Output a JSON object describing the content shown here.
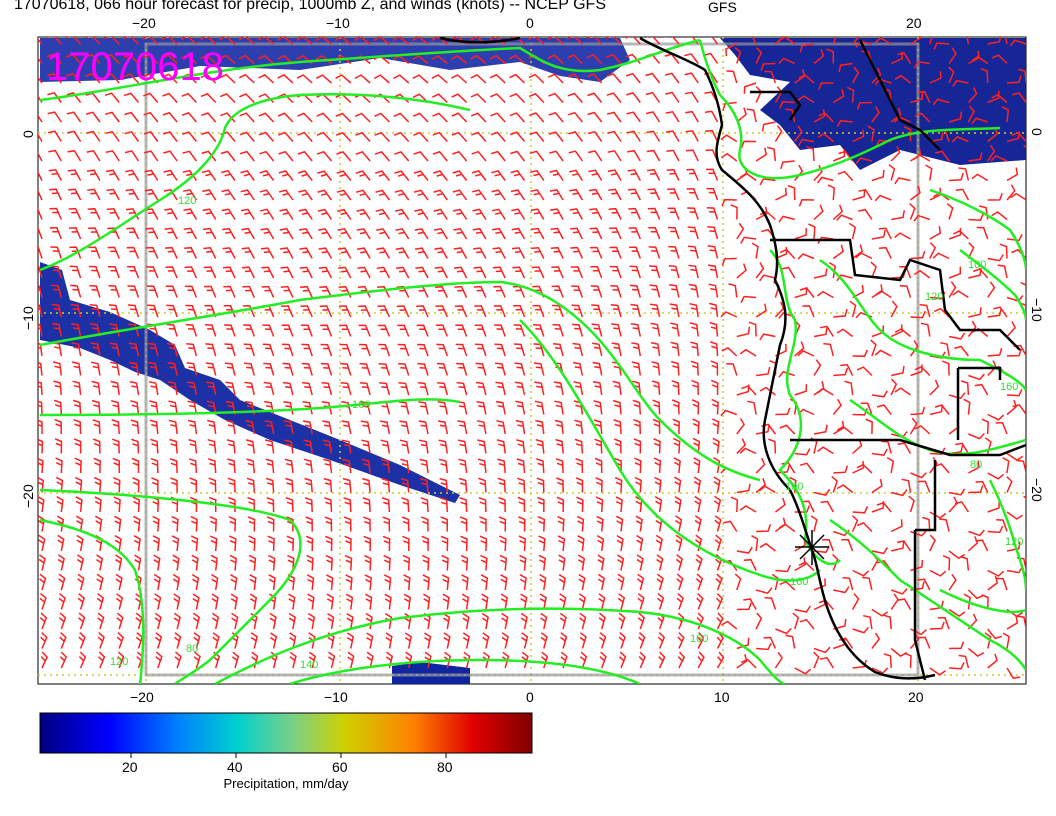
{
  "title": "17070618, 066 hour forecast for precip, 1000mb Z, and winds (knots) -- NCEP GFS",
  "stamp": "17070618",
  "axes": {
    "x_ticks_top": [
      "−20",
      "−10",
      "0",
      "GFS",
      "20"
    ],
    "x_ticks_bottom": [
      "−20",
      "−10",
      "0",
      "10",
      "20"
    ],
    "y_ticks_left": [
      "0",
      "−10",
      "−20"
    ],
    "y_ticks_right": [
      "0",
      "−10",
      "−20"
    ]
  },
  "contour_labels": [
    "120",
    "160",
    "140",
    "160",
    "160",
    "100",
    "120",
    "160",
    "80",
    "120",
    "100",
    "80",
    "120"
  ],
  "colorbar": {
    "label": "Precipitation, mm/day",
    "ticks": [
      "20",
      "40",
      "60",
      "80"
    ],
    "range": [
      3,
      97
    ]
  },
  "colors": {
    "wind_barbs": "#ff2020",
    "contours": "#22ee22",
    "precip_low": "#0a1a8c",
    "stamp": "#ff00ff",
    "graticule": "#cccc33"
  }
}
